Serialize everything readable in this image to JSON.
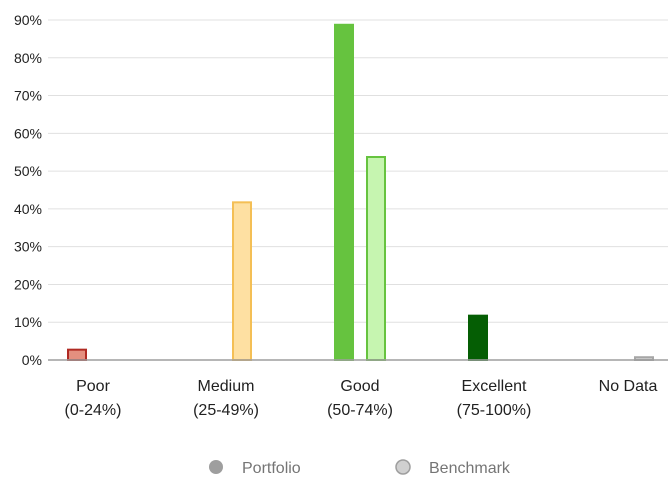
{
  "chart_data": {
    "type": "bar",
    "categories": [
      {
        "line1": "Poor",
        "line2": "(0-24%)"
      },
      {
        "line1": "Medium",
        "line2": "(25-49%)"
      },
      {
        "line1": "Good",
        "line2": "(50-74%)"
      },
      {
        "line1": "Excellent",
        "line2": "(75-100%)"
      },
      {
        "line1": "No Data",
        "line2": ""
      }
    ],
    "series": [
      {
        "name": "Portfolio",
        "values": [
          3,
          0,
          89,
          12,
          0
        ]
      },
      {
        "name": "Benchmark",
        "values": [
          0,
          42,
          54,
          0,
          1
        ]
      }
    ],
    "ylim": [
      0,
      90
    ],
    "yticks": [
      "0%",
      "10%",
      "20%",
      "30%",
      "40%",
      "50%",
      "60%",
      "70%",
      "80%",
      "90%"
    ],
    "grid": true,
    "legend_position": "bottom-center",
    "colors": {
      "portfolio": {
        "fill": [
          "#e48f7f",
          "#fddd9b",
          "#66c33f",
          "#055e04",
          "#a6a6a6"
        ],
        "stroke": [
          "#b02a23",
          "#f4bc4b",
          "#66c33f",
          "#055e04",
          "#a6a6a6"
        ]
      },
      "benchmark": {
        "fill": [
          "#f3c8bf",
          "#fee0a2",
          "#c6f5b0",
          "#7ab76f",
          "#d0d0d0"
        ],
        "stroke": [
          "#d98a80",
          "#f4bf55",
          "#66c33f",
          "#055e04",
          "#a6a6a6"
        ]
      },
      "grid": "#e0e0e0",
      "axis": "#9e9e9e",
      "text": "#212121",
      "legend_text": "#757575",
      "legend_portfolio": "#9e9e9e",
      "legend_benchmark": "#d0d0d0"
    }
  }
}
